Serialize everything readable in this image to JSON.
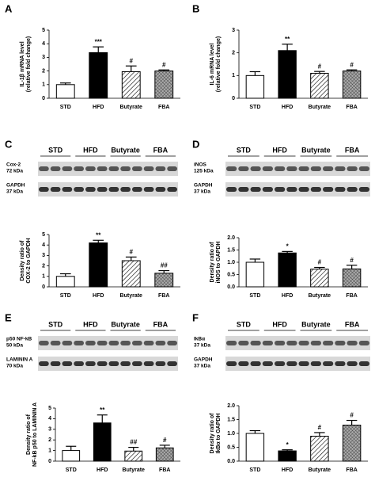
{
  "chart_data": [
    {
      "type": "bar",
      "panel": "A",
      "ylabel": [
        "IL-1β mRNA level",
        "(relative fold change)"
      ],
      "categories": [
        "STD",
        "HFD",
        "Butyrate",
        "FBA"
      ],
      "values": [
        1.0,
        3.35,
        1.95,
        2.0
      ],
      "errors": [
        0.12,
        0.42,
        0.42,
        0.08
      ],
      "annotations": [
        null,
        "***",
        "#",
        "#"
      ],
      "fills": [
        "white",
        "black",
        "hatch",
        "cross"
      ],
      "ylim": [
        0,
        5
      ],
      "yticks": [
        0,
        1,
        2,
        3,
        4,
        5
      ]
    },
    {
      "type": "bar",
      "panel": "B",
      "ylabel": [
        "IL-6 mRNA level",
        "(relative fold change)"
      ],
      "categories": [
        "STD",
        "HFD",
        "Butyrate",
        "FBA"
      ],
      "values": [
        1.0,
        2.1,
        1.1,
        1.2
      ],
      "errors": [
        0.17,
        0.28,
        0.08,
        0.05
      ],
      "annotations": [
        null,
        "**",
        "#",
        "#"
      ],
      "fills": [
        "white",
        "black",
        "hatch",
        "cross"
      ],
      "ylim": [
        0,
        3
      ],
      "yticks": [
        0,
        1,
        2,
        3
      ]
    },
    {
      "type": "bar",
      "panel": "C",
      "ylabel": [
        "Density ratio of",
        "COX-2 to GAPDH"
      ],
      "blot": {
        "lanes": [
          "STD",
          "HFD",
          "Butyrate",
          "FBA"
        ],
        "rows": [
          {
            "name": "Cox-2",
            "size": "72 kDa"
          },
          {
            "name": "GAPDH",
            "size": "37 kDa"
          }
        ]
      },
      "categories": [
        "STD",
        "HFD",
        "Butyrate",
        "FBA"
      ],
      "values": [
        1.0,
        4.2,
        2.5,
        1.3
      ],
      "errors": [
        0.25,
        0.25,
        0.35,
        0.25
      ],
      "annotations": [
        null,
        "**",
        "#",
        "##"
      ],
      "fills": [
        "white",
        "black",
        "hatch",
        "cross"
      ],
      "ylim": [
        0,
        5
      ],
      "yticks": [
        0,
        1,
        2,
        3,
        4,
        5
      ]
    },
    {
      "type": "bar",
      "panel": "D",
      "ylabel": [
        "Density ratio of",
        "iNOS to GAPDH"
      ],
      "blot": {
        "lanes": [
          "STD",
          "HFD",
          "Butyrate",
          "FBA"
        ],
        "rows": [
          {
            "name": "iNOS",
            "size": "125 kDa"
          },
          {
            "name": "GAPDH",
            "size": "37 kDa"
          }
        ]
      },
      "categories": [
        "STD",
        "HFD",
        "Butyrate",
        "FBA"
      ],
      "values": [
        1.0,
        1.38,
        0.72,
        0.73
      ],
      "errors": [
        0.13,
        0.06,
        0.07,
        0.15
      ],
      "annotations": [
        null,
        "*",
        "#",
        "#"
      ],
      "fills": [
        "white",
        "black",
        "hatch",
        "cross"
      ],
      "ylim": [
        0,
        2
      ],
      "yticks": [
        {
          "value": 0,
          "label": "0.0"
        },
        {
          "value": 0.5,
          "label": "0.5"
        },
        {
          "value": 1,
          "label": "1.0"
        },
        {
          "value": 1.5,
          "label": "1.5"
        },
        {
          "value": 2,
          "label": "2.0"
        }
      ]
    },
    {
      "type": "bar",
      "panel": "E",
      "ylabel": [
        "Density ratio of",
        "NF-kB p50 to LAMININ A"
      ],
      "blot": {
        "lanes": [
          "STD",
          "HFD",
          "Butyrate",
          "FBA"
        ],
        "rows": [
          {
            "name": "p50 NF-kB",
            "size": "50 kDa"
          },
          {
            "name": "LAMININ A",
            "size": "70 kDa"
          }
        ]
      },
      "categories": [
        "STD",
        "HFD",
        "Butyrate",
        "FBA"
      ],
      "values": [
        1.0,
        3.6,
        0.95,
        1.25
      ],
      "errors": [
        0.4,
        0.75,
        0.35,
        0.25
      ],
      "annotations": [
        null,
        "**",
        "##",
        "#"
      ],
      "fills": [
        "white",
        "black",
        "hatch",
        "cross"
      ],
      "ylim": [
        0,
        5
      ],
      "yticks": [
        0,
        1,
        2,
        3,
        4,
        5
      ]
    },
    {
      "type": "bar",
      "panel": "F",
      "ylabel": [
        "Density ratio of",
        "IkBα to GAPDH"
      ],
      "blot": {
        "lanes": [
          "STD",
          "HFD",
          "Butyrate",
          "FBA"
        ],
        "rows": [
          {
            "name": "IkBα",
            "size": "37 kDa"
          },
          {
            "name": "GAPDH",
            "size": "37 kDa"
          }
        ]
      },
      "categories": [
        "STD",
        "HFD",
        "Butyrate",
        "FBA"
      ],
      "values": [
        1.0,
        0.37,
        0.9,
        1.3
      ],
      "errors": [
        0.1,
        0.04,
        0.13,
        0.17
      ],
      "annotations": [
        null,
        "*",
        "#",
        "#"
      ],
      "fills": [
        "white",
        "black",
        "hatch",
        "cross"
      ],
      "ylim": [
        0,
        2
      ],
      "yticks": [
        {
          "value": 0,
          "label": "0.0"
        },
        {
          "value": 0.5,
          "label": "0.5"
        },
        {
          "value": 1,
          "label": "1.0"
        },
        {
          "value": 1.5,
          "label": "1.5"
        },
        {
          "value": 2,
          "label": "2.0"
        }
      ]
    }
  ]
}
